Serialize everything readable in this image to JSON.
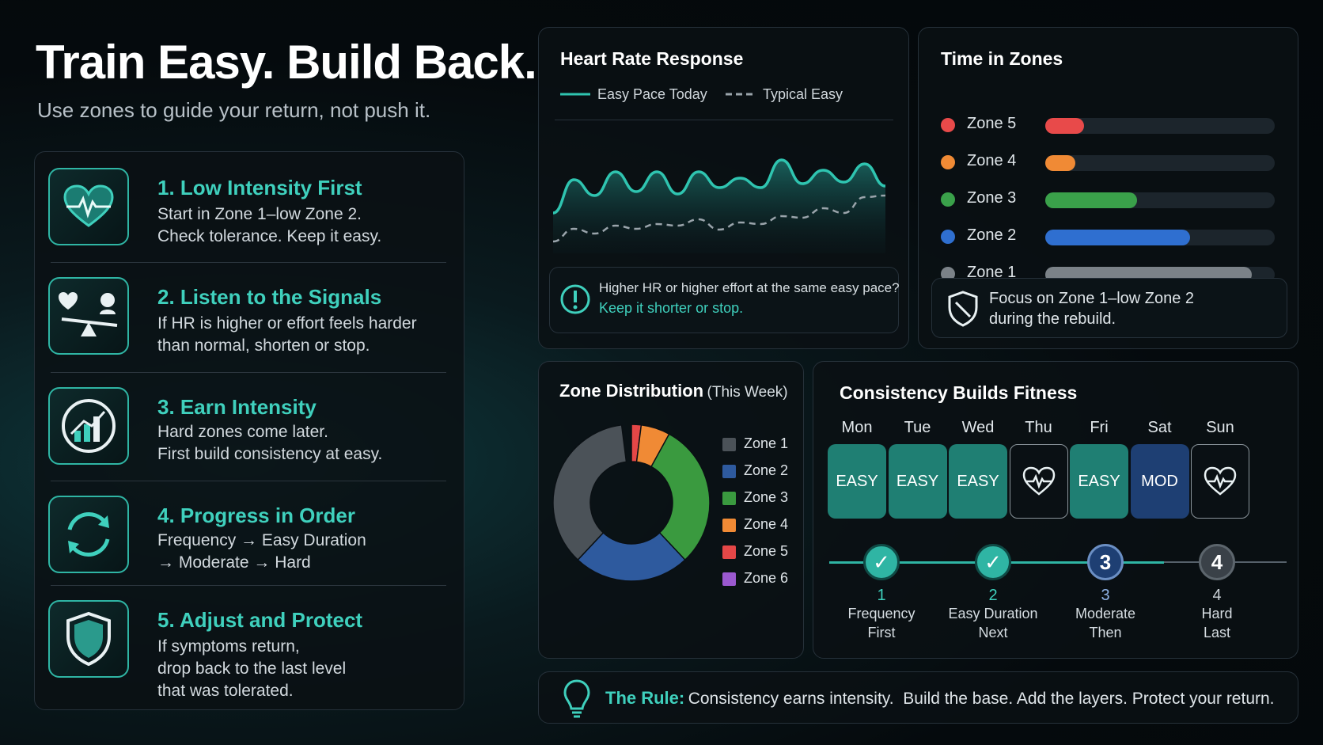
{
  "header": {
    "title": "Train Easy. Build Back.",
    "subtitle": "Use zones to guide your return, not push it."
  },
  "steps": [
    {
      "title": "1. Low Intensity First",
      "lines": [
        "Start in Zone 1–low Zone 2.",
        "Check tolerance. Keep it easy."
      ],
      "icon": "heart-pulse-icon"
    },
    {
      "title": "2. Listen to the Signals",
      "lines": [
        "If HR is higher or effort feels harder",
        "than normal, shorten or stop."
      ],
      "icon": "balance-scale-icon"
    },
    {
      "title": "3. Earn Intensity",
      "lines": [
        "Hard zones come later.",
        "First build consistency at easy."
      ],
      "icon": "chart-progress-icon"
    },
    {
      "title": "4. Progress in Order",
      "lines": [
        "Frequency → Easy Duration",
        "→ Moderate → Hard"
      ],
      "icon": "cycle-arrows-icon"
    },
    {
      "title": "5. Adjust and Protect",
      "lines": [
        "If symptoms return,",
        "drop back to the last level",
        "that was tolerated."
      ],
      "icon": "shield-icon"
    }
  ],
  "heart_rate": {
    "title": "Heart Rate Response",
    "legend": [
      "Easy Pace Today",
      "Typical Easy"
    ],
    "note_line1": "Higher HR or higher effort at the same easy pace?",
    "note_line2": "Keep it shorter or stop.",
    "colors": {
      "today": "#2fc4b0",
      "typical": "#9aa4ab"
    }
  },
  "chart_data": {
    "type": "line",
    "title": "Heart Rate Response",
    "series": [
      {
        "name": "Easy Pace Today",
        "values": [
          232,
          190,
          210,
          180,
          205,
          180,
          208,
          180,
          200,
          188,
          200,
          165,
          195,
          178,
          193,
          170,
          198
        ]
      },
      {
        "name": "Typical Easy",
        "values": [
          268,
          252,
          258,
          248,
          252,
          246,
          248,
          240,
          253,
          244,
          246,
          236,
          238,
          226,
          232,
          212,
          210
        ]
      }
    ]
  },
  "zones": {
    "title": "Time in Zones",
    "items": [
      {
        "label": "Zone 5",
        "color": "#e84a4a",
        "fraction": 0.17
      },
      {
        "label": "Zone 4",
        "color": "#f08a35",
        "fraction": 0.13
      },
      {
        "label": "Zone 3",
        "color": "#3aa14a",
        "fraction": 0.4
      },
      {
        "label": "Zone 2",
        "color": "#2f6fd0",
        "fraction": 0.63
      },
      {
        "label": "Zone 1",
        "color": "#7b8288",
        "fraction": 0.9
      }
    ],
    "focus_line1": "Focus on Zone 1–low Zone 2",
    "focus_line2": "during the rebuild."
  },
  "distribution": {
    "title": "Zone Distribution",
    "title_suffix": "(This Week)",
    "slices": [
      {
        "label": "Zone 1",
        "color": "#4b5258",
        "value": 0.36
      },
      {
        "label": "Zone 2",
        "color": "#2e5a9e",
        "value": 0.24
      },
      {
        "label": "Zone 3",
        "color": "#3a9a3f",
        "value": 0.3
      },
      {
        "label": "Zone 4",
        "color": "#f08a35",
        "value": 0.06
      },
      {
        "label": "Zone 5",
        "color": "#e44747",
        "value": 0.02
      },
      {
        "label": "Zone 6",
        "color": "#9b59d0",
        "value": 0.0
      }
    ]
  },
  "consistency": {
    "title": "Consistency Builds Fitness",
    "days": [
      {
        "day": "Mon",
        "label": "EASY",
        "kind": "easy"
      },
      {
        "day": "Tue",
        "label": "EASY",
        "kind": "easy"
      },
      {
        "day": "Wed",
        "label": "EASY",
        "kind": "easy"
      },
      {
        "day": "Thu",
        "label": "",
        "kind": "rest"
      },
      {
        "day": "Fri",
        "label": "EASY",
        "kind": "easy"
      },
      {
        "day": "Sat",
        "label": "MOD",
        "kind": "mod"
      },
      {
        "day": "Sun",
        "label": "",
        "kind": "rest"
      }
    ],
    "progression": [
      {
        "node": "✓",
        "num": "1",
        "line1": "Frequency",
        "line2": "First",
        "state": "done"
      },
      {
        "node": "✓",
        "num": "2",
        "line1": "Easy Duration",
        "line2": "Next",
        "state": "done"
      },
      {
        "node": "3",
        "num": "3",
        "line1": "Moderate",
        "line2": "Then",
        "state": "current"
      },
      {
        "node": "4",
        "num": "4",
        "line1": "Hard",
        "line2": "Last",
        "state": "future"
      }
    ]
  },
  "rule": {
    "label": "The Rule:",
    "text": "Consistency earns intensity.  Build the base. Add the layers. Protect your return."
  }
}
